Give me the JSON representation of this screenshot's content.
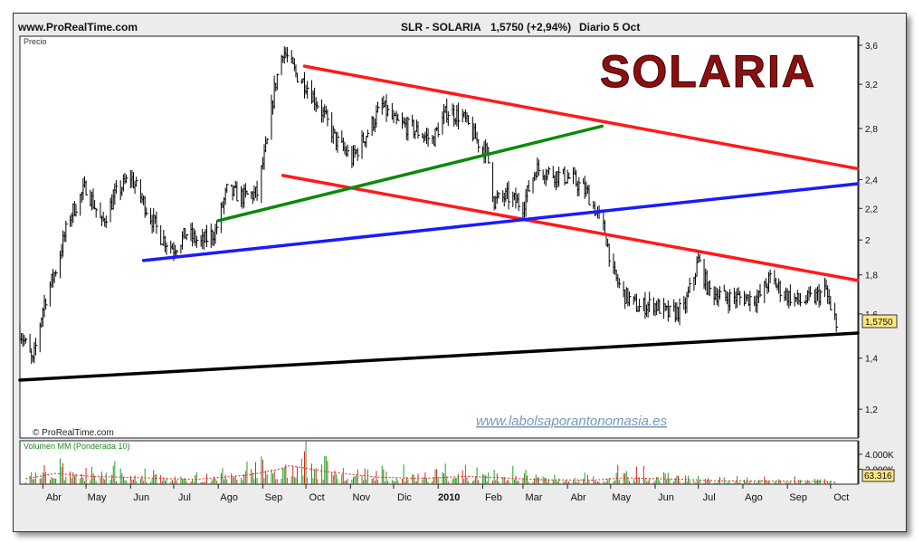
{
  "header": {
    "site": "www.ProRealTime.com",
    "symbol": "SLR - SOLARIA",
    "quote": "1,5750 (+2,94%)",
    "period": "Diario  5 Oct"
  },
  "watermark": {
    "brand": "SOLARIA",
    "source": "© ProRealTime.com",
    "url": "www.labolsaporantonomasia.es"
  },
  "colors": {
    "brand": "#8c1010",
    "price": "#000000",
    "line_red": "#ff1a1a",
    "line_green": "#0a8a0a",
    "line_blue": "#1a1aff",
    "line_black": "#000000",
    "volume_up": "#22a022",
    "volume_down": "#e02020",
    "last_price_label": "#ffe680"
  },
  "chart_data": [
    {
      "type": "line",
      "ylabel": "Precio",
      "ylim": [
        1.1,
        3.7
      ],
      "scale": "log",
      "y_ticks": [
        1.2,
        1.4,
        1.6,
        1.8,
        2.0,
        2.2,
        2.4,
        2.8,
        3.2,
        3.6
      ],
      "y_tick_labels": [
        "1,2",
        "1,4",
        "1,6",
        "1,8",
        "2",
        "2,2",
        "2,4",
        "2,8",
        "3,2",
        "3,6"
      ],
      "x_tick_labels": [
        "Abr",
        "May",
        "Jun",
        "Jul",
        "Ago",
        "Sep",
        "Oct",
        "Nov",
        "Dic",
        "2010",
        "Feb",
        "Mar",
        "Abr",
        "May",
        "Jun",
        "Jul",
        "Ago",
        "Sep",
        "Oct"
      ],
      "x_range": [
        "2009-03-16",
        "2010-10-20"
      ],
      "last_price": 1.575,
      "last_price_label": "1,5750",
      "series": [
        {
          "name": "",
          "x": [
            "2009-03-16",
            "2009-03-25",
            "2009-04-02",
            "2009-04-10",
            "2009-04-20",
            "2009-05-01",
            "2009-05-12",
            "2009-05-22",
            "2009-06-01",
            "2009-06-12",
            "2009-06-22",
            "2009-07-01",
            "2009-07-10",
            "2009-07-20",
            "2009-07-30",
            "2009-08-07",
            "2009-08-18",
            "2009-08-28",
            "2009-09-04",
            "2009-09-09",
            "2009-09-15",
            "2009-09-24",
            "2009-10-01",
            "2009-10-12",
            "2009-10-22",
            "2009-11-02",
            "2009-11-12",
            "2009-11-23",
            "2009-12-02",
            "2009-12-14",
            "2009-12-28",
            "2010-01-07",
            "2010-01-18",
            "2010-01-28",
            "2010-02-04",
            "2010-02-09",
            "2010-02-18",
            "2010-03-01",
            "2010-03-10",
            "2010-03-20",
            "2010-04-05",
            "2010-04-15",
            "2010-04-27",
            "2010-05-03",
            "2010-05-10",
            "2010-05-20",
            "2010-05-31",
            "2010-06-10",
            "2010-06-21",
            "2010-06-29",
            "2010-07-01",
            "2010-07-08",
            "2010-07-20",
            "2010-08-02",
            "2010-08-12",
            "2010-08-20",
            "2010-08-30",
            "2010-09-10",
            "2010-09-20",
            "2010-09-28",
            "2010-10-01",
            "2010-10-05"
          ],
          "y": [
            1.52,
            1.38,
            1.66,
            1.83,
            2.15,
            2.35,
            2.1,
            2.3,
            2.42,
            2.2,
            2.02,
            1.95,
            2.04,
            1.98,
            2.05,
            2.32,
            2.28,
            2.3,
            2.68,
            3.15,
            3.55,
            3.3,
            3.2,
            2.95,
            2.7,
            2.55,
            2.75,
            3.0,
            2.85,
            2.8,
            2.7,
            2.95,
            2.9,
            2.7,
            2.6,
            2.25,
            2.28,
            2.22,
            2.48,
            2.45,
            2.4,
            2.3,
            2.05,
            1.8,
            1.7,
            1.63,
            1.65,
            1.6,
            1.62,
            1.82,
            1.88,
            1.72,
            1.68,
            1.68,
            1.68,
            1.78,
            1.7,
            1.66,
            1.68,
            1.72,
            1.6,
            1.575
          ]
        }
      ],
      "trendlines": [
        {
          "name": "",
          "color": "#ff1a1a",
          "x": [
            "2009-09-30",
            "2010-10-20"
          ],
          "y": [
            3.38,
            2.48
          ]
        },
        {
          "name": "",
          "color": "#ff1a1a",
          "x": [
            "2009-09-15",
            "2010-10-20"
          ],
          "y": [
            2.43,
            1.77
          ]
        },
        {
          "name": "",
          "color": "#0a8a0a",
          "x": [
            "2009-08-01",
            "2010-04-25"
          ],
          "y": [
            2.12,
            2.82
          ]
        },
        {
          "name": "",
          "color": "#1a1aff",
          "x": [
            "2009-06-10",
            "2010-10-20"
          ],
          "y": [
            1.88,
            2.37
          ]
        },
        {
          "name": "",
          "color": "#000000",
          "x": [
            "2009-03-16",
            "2010-10-20"
          ],
          "y": [
            1.31,
            1.51
          ]
        }
      ]
    },
    {
      "type": "bar",
      "ylabel": "Volumen MM (Ponderada 10)",
      "ylim": [
        0,
        5800000
      ],
      "y_tick_labels": [
        "4.000K",
        "2.000K"
      ],
      "y_ticks": [
        4000000,
        2000000
      ],
      "last_value_label": "63.316",
      "series": [
        {
          "name": "",
          "x": [
            "2009-03-20",
            "2009-04-10",
            "2009-05-05",
            "2009-06-10",
            "2009-07-15",
            "2009-08-20",
            "2009-09-10",
            "2009-09-20",
            "2009-10-15",
            "2009-11-20",
            "2009-12-20",
            "2010-01-20",
            "2010-02-10",
            "2010-03-15",
            "2010-04-20",
            "2010-05-10",
            "2010-06-15",
            "2010-07-15",
            "2010-08-20",
            "2010-09-20",
            "2010-10-04"
          ],
          "values": [
            1600000,
            3200000,
            2300000,
            1900000,
            1400000,
            2600000,
            4200000,
            5500000,
            3700000,
            2100000,
            1700000,
            2300000,
            2000000,
            1300000,
            1200000,
            1900000,
            1500000,
            1000000,
            900000,
            800000,
            700000
          ]
        }
      ]
    }
  ]
}
